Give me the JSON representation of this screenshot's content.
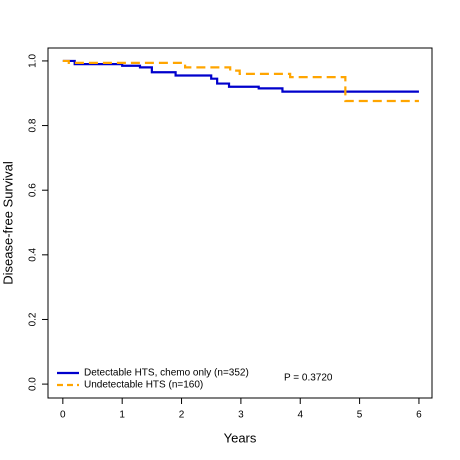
{
  "chart_data": {
    "type": "line",
    "step": "post",
    "xlabel": "Years",
    "ylabel": "Disease-free Survival",
    "xlim": [
      -0.25,
      6.22
    ],
    "ylim": [
      -0.043,
      1.04
    ],
    "xticks": [
      0,
      1,
      2,
      3,
      4,
      5,
      6
    ],
    "yticks": [
      {
        "value": 0,
        "label": "0.0"
      },
      0.2,
      0.4,
      0.6,
      0.8,
      {
        "value": 1,
        "label": "1.0"
      }
    ],
    "series": [
      {
        "name": "Detectable HTS, chemo only (n=352)",
        "color": "#0000cc",
        "dash": false,
        "x": [
          0,
          0.2,
          1.0,
          1.3,
          1.5,
          1.9,
          2.5,
          2.6,
          2.8,
          3.3,
          3.7,
          6
        ],
        "values": [
          1.0,
          0.99,
          0.985,
          0.98,
          0.965,
          0.955,
          0.945,
          0.93,
          0.92,
          0.915,
          0.905,
          0.905
        ]
      },
      {
        "name": "Undetectable HTS (n=160)",
        "color": "#ffa500",
        "dash": true,
        "x": [
          0,
          0.1,
          2.06,
          2.82,
          2.98,
          3.83,
          4.76,
          6
        ],
        "values": [
          1.0,
          0.994,
          0.98,
          0.97,
          0.96,
          0.95,
          0.876,
          0.876
        ]
      }
    ],
    "annotation": "P = 0.3720"
  }
}
